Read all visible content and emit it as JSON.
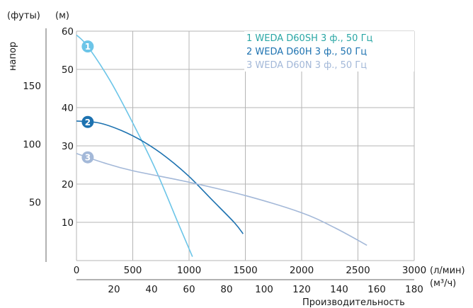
{
  "chart_data": {
    "type": "line",
    "xlabel": "Производительность",
    "ylabel": "напор",
    "units": {
      "y_feet": "(футы)",
      "y_meters": "(м)",
      "x_lpm": "(л/мин)",
      "x_m3h": "(м³/ч)"
    },
    "x_lpm_ticks": [
      "0",
      "500",
      "1000",
      "1500",
      "2000",
      "2500",
      "3000"
    ],
    "x_m3h_ticks": [
      "20",
      "40",
      "60",
      "80",
      "100",
      "120",
      "140",
      "160",
      "180"
    ],
    "y_m_ticks": [
      "10",
      "20",
      "30",
      "40",
      "50",
      "60"
    ],
    "y_ft_ticks": [
      "50",
      "100",
      "150"
    ],
    "xlim": [
      0,
      3000
    ],
    "ylim": [
      0,
      60
    ],
    "grid": true,
    "legend_position": "top-right",
    "series": [
      {
        "name": "1 WEDA D60SH 3 ф., 50 Гц",
        "marker": "1",
        "color": "#6cc5e8",
        "points": [
          [
            0,
            59
          ],
          [
            100,
            56
          ],
          [
            300,
            47
          ],
          [
            500,
            36
          ],
          [
            700,
            24
          ],
          [
            900,
            10
          ],
          [
            1030,
            1
          ]
        ]
      },
      {
        "name": "2 WEDA D60H 3 ф., 50 Гц",
        "marker": "2",
        "color": "#1d72b0",
        "points": [
          [
            0,
            36.5
          ],
          [
            200,
            36
          ],
          [
            400,
            34
          ],
          [
            600,
            31
          ],
          [
            800,
            27
          ],
          [
            1000,
            22
          ],
          [
            1200,
            16
          ],
          [
            1400,
            10
          ],
          [
            1480,
            7
          ]
        ]
      },
      {
        "name": "3 WEDA D60N 3 ф., 50 Гц",
        "marker": "3",
        "color": "#a3b8d8",
        "points": [
          [
            0,
            28
          ],
          [
            250,
            25.5
          ],
          [
            500,
            23.5
          ],
          [
            1000,
            20.5
          ],
          [
            1500,
            17
          ],
          [
            2000,
            12.5
          ],
          [
            2300,
            8.5
          ],
          [
            2580,
            4
          ]
        ]
      }
    ]
  }
}
